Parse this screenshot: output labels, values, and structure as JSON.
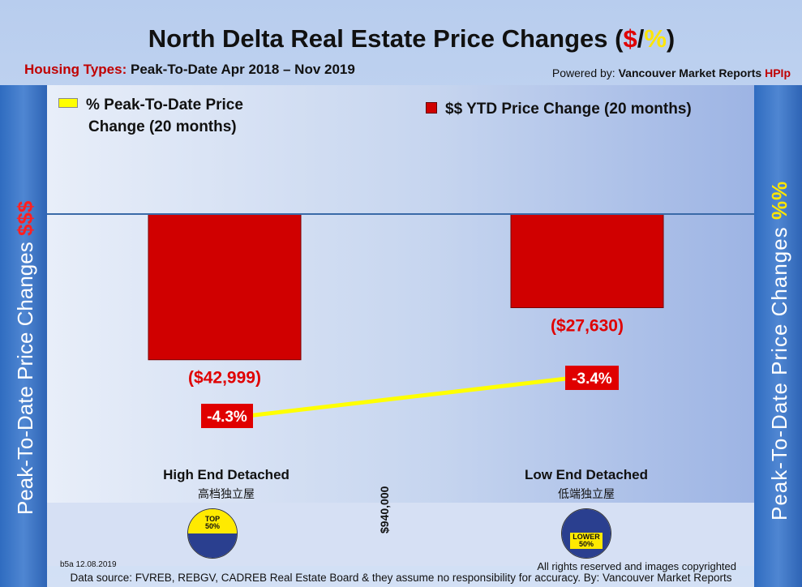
{
  "title": {
    "prefix": "North Delta Real Estate Price Changes (",
    "dollar": "$",
    "slash": "/",
    "pct": "%",
    "suffix": ")"
  },
  "housing_types": {
    "label": "Housing Types:",
    "value": "Peak-To-Date Apr 2018 – Nov 2019"
  },
  "powered_by": {
    "prefix": "Powered by:",
    "brand": "Vancouver Market Reports",
    "hpi": "HPIp"
  },
  "side_left": {
    "text": "Peak-To-Date Price Changes",
    "accent": "$$$"
  },
  "side_right": {
    "text": "Peak-To-Date  Price  Changes",
    "accent": "%%"
  },
  "legend": {
    "percent_line1": "% Peak-To-Date Price",
    "percent_line2": "Change (20 months)",
    "dollar": "$$ YTD Price Change (20 months)"
  },
  "categories": [
    {
      "name": "High End Detached",
      "chinese": "高档独立屋",
      "badge_top": "TOP",
      "badge_bottom": "50%"
    },
    {
      "name": "Low End Detached",
      "chinese": "低端独立屋",
      "badge_top": "LOWER",
      "badge_bottom": "50%"
    }
  ],
  "divider_price": "$940,000",
  "footer": {
    "code": "b5a 12.08.2019",
    "rights": "All rights reserved and  images copyrighted",
    "source": "Data source: FVREB, REBGV, CADREB Real Estate Board & they assume no responsibility for accuracy. By: Vancouver Market Reports"
  },
  "colors": {
    "bar": "#d00000",
    "line": "#ffff00",
    "label_bg": "#e00000",
    "baseline": "#3a6aa8"
  },
  "chart_data": {
    "type": "bar",
    "categories": [
      "High End Detached",
      "Low End Detached"
    ],
    "series": [
      {
        "name": "$$ YTD Price Change (20 months)",
        "type": "bar",
        "values": [
          -42999,
          -27630
        ],
        "labels": [
          "($42,999)",
          "($27,630)"
        ]
      },
      {
        "name": "% Peak-To-Date Price Change (20 months)",
        "type": "line",
        "values": [
          -4.3,
          -3.4
        ],
        "labels": [
          "-4.3%",
          "-3.4%"
        ]
      }
    ],
    "ylim": [
      -100000,
      0
    ],
    "y2lim": [
      -8,
      -2
    ],
    "legend": "top"
  }
}
